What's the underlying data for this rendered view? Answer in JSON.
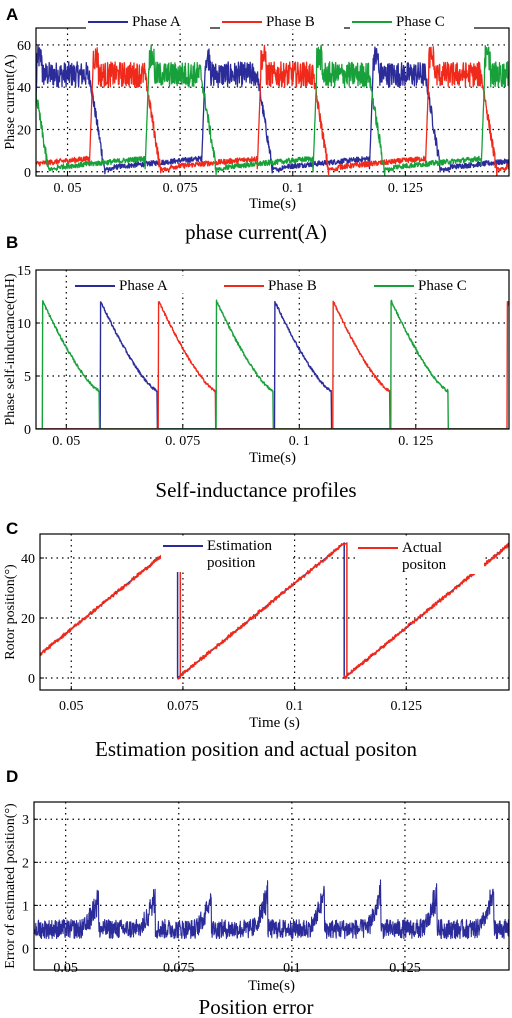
{
  "chart_data": [
    {
      "panel": "A",
      "type": "line",
      "caption": "phase current(A)",
      "xlabel": "Time(s)",
      "ylabel": "Phase current(A)",
      "xlim": [
        0.043,
        0.148
      ],
      "ylim": [
        -2,
        68
      ],
      "xticks": [
        0.05,
        0.075,
        0.1,
        0.125
      ],
      "xtick_labels": [
        "0. 05",
        "0. 075",
        "0. 1",
        "0. 125"
      ],
      "yticks": [
        0,
        20,
        40,
        60
      ],
      "ytick_labels": [
        "0",
        "20",
        "40",
        "60"
      ],
      "grid": true,
      "legend_position": "top",
      "period": 0.0373,
      "conduction_width": 0.0124,
      "on_level": 46,
      "noise": 6,
      "series": [
        {
          "name": "Phase A",
          "color": "#2b2b9a",
          "phase_start": 0.0424
        },
        {
          "name": "Phase B",
          "color": "#f02a1a",
          "phase_start": 0.0548
        },
        {
          "name": "Phase C",
          "color": "#18a03a",
          "phase_start": 0.0672
        }
      ]
    },
    {
      "panel": "B",
      "type": "line",
      "caption": "Self-inductance profiles",
      "xlabel": "Time(s)",
      "ylabel": "Phase self-inductance(mH)",
      "xlim": [
        0.0435,
        0.145
      ],
      "ylim": [
        0,
        15
      ],
      "xticks": [
        0.05,
        0.075,
        0.1,
        0.125
      ],
      "xtick_labels": [
        "0. 05",
        "0. 075",
        "0. 1",
        "0. 125"
      ],
      "yticks": [
        0,
        5,
        10,
        15
      ],
      "ytick_labels": [
        "0",
        "5",
        "10",
        "15"
      ],
      "grid": true,
      "legend_position": "top",
      "peak": 12.1,
      "valley": 3.6,
      "segment_width": 0.0122,
      "series": [
        {
          "name": "Phase A",
          "color": "#2b2b9a",
          "rises": [
            0.0573,
            0.0947
          ]
        },
        {
          "name": "Phase B",
          "color": "#f02a1a",
          "rises": [
            0.0698,
            0.1072,
            0.1446
          ]
        },
        {
          "name": "Phase C",
          "color": "#18a03a",
          "rises": [
            0.0449,
            0.0822,
            0.1197
          ]
        }
      ]
    },
    {
      "panel": "C",
      "type": "line",
      "caption": "Estimation position and actual positon",
      "xlabel": "Time (s)",
      "ylabel": "Rotor position(°)",
      "xlim": [
        0.043,
        0.148
      ],
      "ylim": [
        -4,
        48
      ],
      "xticks": [
        0.05,
        0.075,
        0.1,
        0.125
      ],
      "xtick_labels": [
        "0.05",
        "0.075",
        "0.1",
        "0.125"
      ],
      "yticks": [
        0,
        20,
        40
      ],
      "ytick_labels": [
        "0",
        "20",
        "40"
      ],
      "grid": true,
      "legend_position": "top",
      "resets": [
        0.0738,
        0.1111
      ],
      "slope_deg_per_s": 1205,
      "series": [
        {
          "name": "Estimation position",
          "legend_lines": [
            "Estimation",
            "position"
          ],
          "color": "#2b2b9a"
        },
        {
          "name": "Actual positon",
          "legend_lines": [
            "Actual",
            "positon"
          ],
          "color": "#f02a1a"
        }
      ]
    },
    {
      "panel": "D",
      "type": "line",
      "caption": "Position error",
      "xlabel": "Time(s)",
      "ylabel": "Error of estimated position(°)",
      "xlim": [
        0.043,
        0.148
      ],
      "ylim": [
        -0.5,
        3.4
      ],
      "xticks": [
        0.05,
        0.075,
        0.1,
        0.125
      ],
      "xtick_labels": [
        "0.05",
        "0.075",
        "0.1",
        "0.125"
      ],
      "yticks": [
        0,
        1,
        2,
        3
      ],
      "ytick_labels": [
        "0",
        "1",
        "2",
        "3"
      ],
      "grid": true,
      "baseline": 0.45,
      "spike_peak": 1.5,
      "spike_times": [
        0.0573,
        0.0698,
        0.0822,
        0.0947,
        0.1072,
        0.1197,
        0.1321,
        0.1446
      ],
      "series": [
        {
          "name": "",
          "color": "#2b2b9a"
        }
      ]
    }
  ]
}
